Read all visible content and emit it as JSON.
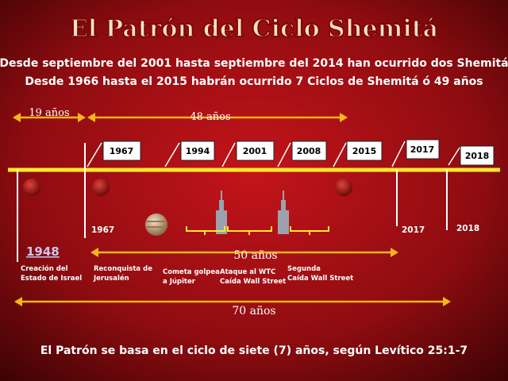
{
  "header": {
    "title": "El Patrón del Ciclo Shemitá",
    "lines": [
      "Desde septiembre del 2001 hasta septiembre del 2014 han ocurrido dos Shemitá",
      "Desde 1966 hasta el 2015 habrán ocurrido 7 Ciclos de Shemitá ó 49 años"
    ]
  },
  "spans": [
    "19 años",
    "48 años",
    "50 años",
    "70 años"
  ],
  "year_boxes": [
    "1967",
    "1994",
    "2001",
    "2008",
    "2015",
    "2017",
    "2018"
  ],
  "markers": [
    "1967",
    "2017",
    "2018"
  ],
  "highlight_year": "1948",
  "events": [
    [
      "Creación del",
      "Estado de Israel"
    ],
    [
      "Reconquista de",
      "Jerusalén"
    ],
    [
      "Cometa golpea",
      "a Júpiter"
    ],
    [
      "Ataque al WTC",
      "Caída Wall Street"
    ],
    [
      "Segunda",
      "Caída Wall Street"
    ]
  ],
  "footer": "El Patrón se basa en el ciclo de siete (7) años, según Levítico 25:1-7"
}
